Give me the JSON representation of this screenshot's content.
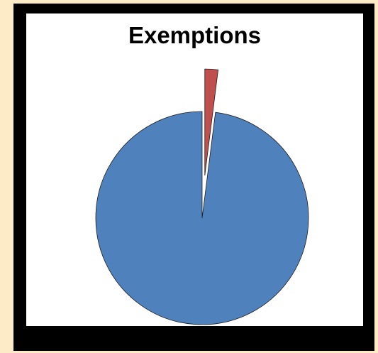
{
  "chart_data": {
    "type": "pie",
    "title": "Exemptions",
    "categories": [
      "",
      ""
    ],
    "values": [
      98,
      2
    ],
    "colors": [
      "#4f81bd",
      "#c0504d"
    ],
    "exploded": [
      false,
      true
    ],
    "legend": false
  }
}
